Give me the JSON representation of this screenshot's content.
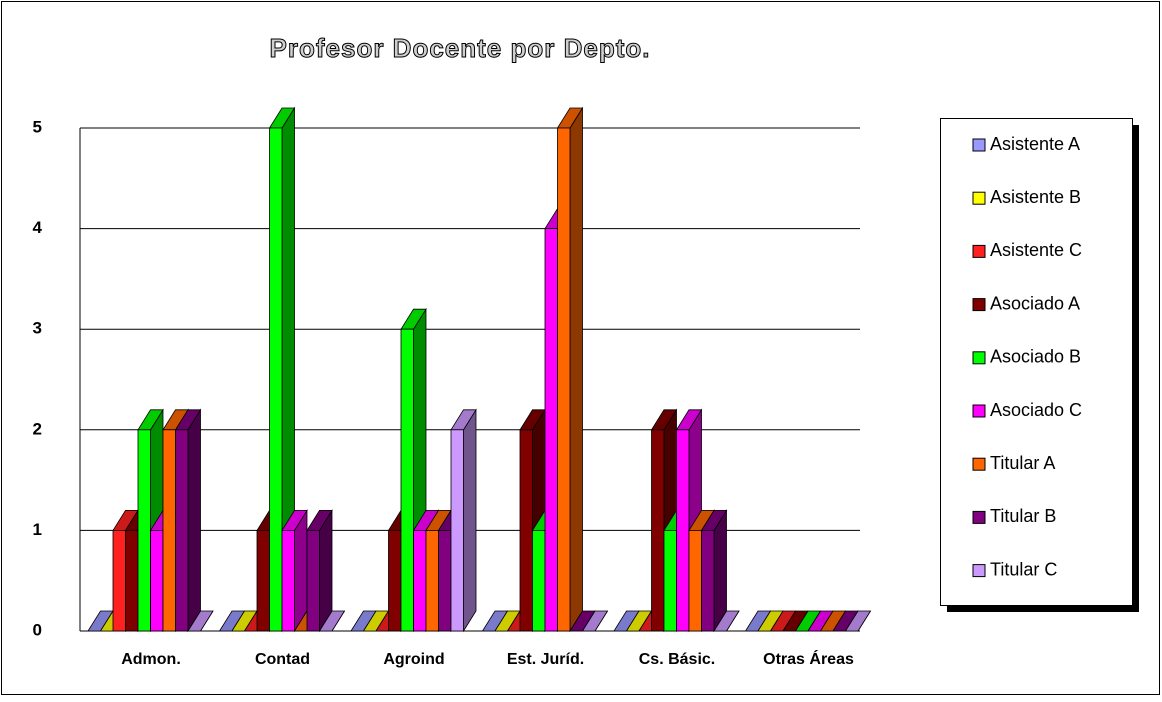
{
  "chart_data": {
    "type": "bar3d",
    "title": "Profesor Docente por Depto.",
    "categories": [
      "Admon.",
      "Contad",
      "Agroind",
      "Est. Juríd.",
      "Cs. Básic.",
      "Otras Áreas"
    ],
    "series": [
      {
        "name": "Asistente A",
        "color": "#9999ff",
        "values": [
          0,
          0,
          0,
          0,
          0,
          0
        ]
      },
      {
        "name": "Asistente B",
        "color": "#ffff00",
        "values": [
          0,
          0,
          0,
          0,
          0,
          0
        ]
      },
      {
        "name": "Asistente C",
        "color": "#ff2020",
        "values": [
          1,
          0,
          0,
          0,
          0,
          0
        ]
      },
      {
        "name": "Asociado A",
        "color": "#800000",
        "values": [
          1,
          1,
          1,
          2,
          2,
          0
        ]
      },
      {
        "name": "Asociado B",
        "color": "#00ff00",
        "values": [
          2,
          5,
          3,
          1,
          1,
          0
        ]
      },
      {
        "name": "Asociado C",
        "color": "#ff00ff",
        "values": [
          1,
          1,
          1,
          4,
          2,
          0
        ]
      },
      {
        "name": "Titular A",
        "color": "#ff6600",
        "values": [
          2,
          0,
          1,
          5,
          1,
          0
        ]
      },
      {
        "name": "Titular B",
        "color": "#800080",
        "values": [
          2,
          1,
          1,
          0,
          1,
          0
        ]
      },
      {
        "name": "Titular C",
        "color": "#cc99ff",
        "values": [
          0,
          0,
          2,
          0,
          0,
          0
        ]
      }
    ],
    "ylim": [
      0,
      5
    ],
    "yticks": [
      0,
      1,
      2,
      3,
      4,
      5
    ],
    "grid": true,
    "legend": "right"
  }
}
